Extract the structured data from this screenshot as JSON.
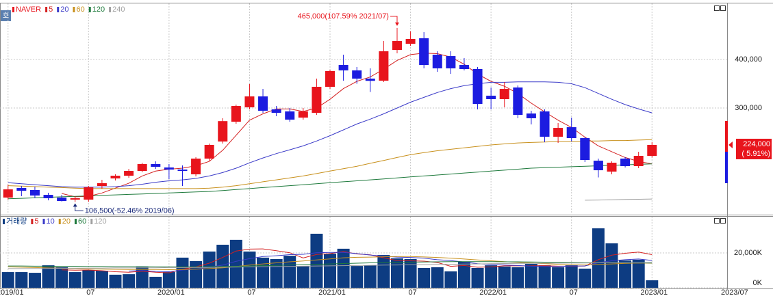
{
  "chart_data": [
    {
      "type": "candlestick",
      "title": "NAVER",
      "title_color": "#e8141c",
      "badge": "호",
      "up_color": "#e8141c",
      "down_color": "#1c1ce0",
      "xlim": [
        -0.6,
        53.6
      ],
      "ylim": [
        81700,
        514100
      ],
      "yticks": [
        {
          "value": 300000,
          "label": "300,000"
        },
        {
          "value": 400000,
          "label": "400,000"
        }
      ],
      "open": [
        115500,
        135200,
        131000,
        121100,
        115500,
        111300,
        111300,
        139400,
        154900,
        160500,
        170400,
        184500,
        177500,
        173200,
        163400,
        195800,
        231000,
        271800,
        301400,
        323900,
        297200,
        293000,
        280300,
        290100,
        343700,
        388700,
        377500,
        360600,
        356300,
        419700,
        432400,
        443700,
        409900,
        407000,
        388700,
        380300,
        325400,
        318300,
        342300,
        288700,
        293000,
        240800,
        260500,
        238000,
        191500,
        169000,
        195800,
        180300,
        201400
      ],
      "high": [
        142000,
        139400,
        138000,
        125400,
        121100,
        118300,
        139400,
        152100,
        163400,
        174600,
        187300,
        190100,
        184500,
        181700,
        198600,
        226800,
        278900,
        307000,
        349300,
        339400,
        304200,
        300000,
        300000,
        360600,
        378900,
        409900,
        384500,
        381700,
        438000,
        465000,
        458000,
        456300,
        416900,
        416900,
        402800,
        384500,
        342300,
        353500,
        346500,
        294400,
        297200,
        269000,
        280300,
        240800,
        195800,
        190100,
        198600,
        209800,
        229600
      ],
      "low": [
        111300,
        118300,
        114100,
        109800,
        107500,
        106500,
        107000,
        133800,
        150700,
        156300,
        167600,
        174600,
        153500,
        139400,
        159100,
        191500,
        226800,
        267600,
        297200,
        290100,
        283100,
        271800,
        276100,
        285900,
        339400,
        356300,
        350000,
        333000,
        353500,
        412700,
        428200,
        381700,
        374600,
        370400,
        377500,
        297200,
        297200,
        301400,
        278900,
        266200,
        229600,
        228200,
        231000,
        188700,
        157000,
        163400,
        177500,
        176100,
        198000
      ],
      "close": [
        132400,
        129600,
        119700,
        114100,
        108400,
        114100,
        136600,
        145100,
        160500,
        170400,
        184500,
        178900,
        173200,
        170400,
        195800,
        224000,
        273000,
        304200,
        323900,
        294400,
        290100,
        276100,
        293000,
        343700,
        376100,
        377500,
        360600,
        356000,
        416900,
        438000,
        442300,
        388700,
        381700,
        381700,
        380300,
        308400,
        318300,
        339400,
        285900,
        278900,
        240800,
        259100,
        238000,
        192900,
        171800,
        187300,
        180300,
        201400,
        224000
      ],
      "series": [
        {
          "name": "5",
          "color": "#d42020",
          "values": [
            null,
            null,
            null,
            null,
            124000,
            117000,
            118000,
            125000,
            135000,
            145000,
            160000,
            170000,
            174000,
            176000,
            181000,
            190000,
            213000,
            244000,
            275000,
            288000,
            298000,
            298000,
            293000,
            300000,
            318000,
            340000,
            355000,
            364000,
            380000,
            398000,
            410000,
            413000,
            412000,
            405000,
            390000,
            370000,
            355000,
            345000,
            330000,
            310000,
            292000,
            275000,
            260000,
            240000,
            222000,
            210000,
            198000,
            190000,
            185000
          ]
        },
        {
          "name": "20",
          "color": "#3a3ac8",
          "values": [
            146000,
            144000,
            142000,
            140000,
            138000,
            137000,
            137000,
            137000,
            138000,
            140000,
            143000,
            147000,
            150000,
            152000,
            155000,
            160000,
            167000,
            176000,
            187000,
            197000,
            206000,
            214000,
            222000,
            232000,
            243000,
            255000,
            267000,
            277000,
            288000,
            300000,
            312000,
            322000,
            332000,
            340000,
            346000,
            350000,
            353000,
            353000,
            354000,
            354000,
            354000,
            353000,
            350000,
            342000,
            330000,
            318000,
            307000,
            298000,
            290000
          ]
        },
        {
          "name": "60",
          "color": "#c8901c",
          "values": [
            140000,
            139000,
            138000,
            137000,
            136000,
            135000,
            134000,
            134000,
            134000,
            134000,
            134000,
            134000,
            134000,
            134000,
            134000,
            135000,
            137000,
            140000,
            144000,
            148000,
            152000,
            156000,
            160000,
            165000,
            170000,
            175000,
            180000,
            186000,
            192000,
            198000,
            204000,
            208000,
            212000,
            215000,
            218000,
            221000,
            224000,
            226000,
            228000,
            229000,
            230000,
            231000,
            231000,
            232000,
            232000,
            233000,
            233000,
            234000,
            235000
          ]
        },
        {
          "name": "120",
          "color": "#1e7a3c",
          "values": [
            113000,
            114000,
            115000,
            116000,
            117000,
            118000,
            119000,
            120000,
            121000,
            122000,
            123000,
            124000,
            125000,
            126000,
            127000,
            128000,
            130000,
            132000,
            134000,
            136000,
            138000,
            140000,
            142000,
            144000,
            146000,
            148000,
            150000,
            152000,
            154000,
            156000,
            158000,
            160000,
            162000,
            164000,
            166000,
            168000,
            170000,
            172000,
            174000,
            176000,
            177000,
            178000,
            179000,
            180000,
            181000,
            182000,
            183000,
            184000,
            185000
          ]
        },
        {
          "name": "240",
          "color": "#a0a0a0",
          "values": [
            null,
            null,
            null,
            null,
            null,
            null,
            null,
            null,
            null,
            null,
            null,
            null,
            null,
            null,
            null,
            null,
            null,
            null,
            null,
            null,
            null,
            null,
            null,
            null,
            null,
            null,
            null,
            null,
            null,
            null,
            null,
            null,
            null,
            null,
            null,
            null,
            null,
            null,
            null,
            null,
            null,
            null,
            null,
            110000,
            110500,
            111000,
            111500,
            112000,
            112500
          ]
        }
      ],
      "high_label": {
        "text": "465,000(107.59% 2021/07)",
        "index": 29
      },
      "low_label": {
        "text": "106,500(-52.46% 2019/06)",
        "index": 5
      },
      "last_label": "224,000",
      "last_change": "( 5.91%)"
    },
    {
      "type": "bar",
      "title": "거래량",
      "color": "#0d3c82",
      "xlim": [
        -0.6,
        53.6
      ],
      "ylim": [
        0,
        39600
      ],
      "yticks": [
        {
          "value": 0,
          "label": "0K"
        },
        {
          "value": 20000,
          "label": "20,000K"
        }
      ],
      "xticks": [
        {
          "value": 0,
          "label": "2019/01"
        },
        {
          "value": 6,
          "label": "07"
        },
        {
          "value": 12,
          "label": "2020/01"
        },
        {
          "value": 18,
          "label": "07"
        },
        {
          "value": 24,
          "label": "2021/01"
        },
        {
          "value": 30,
          "label": "07"
        },
        {
          "value": 36,
          "label": "2022/01"
        },
        {
          "value": 42,
          "label": "07"
        },
        {
          "value": 48,
          "label": "2023/01"
        },
        {
          "value": 54,
          "label": "2023/07"
        }
      ],
      "values": [
        9000,
        9000,
        8600,
        12900,
        11800,
        9000,
        10200,
        9800,
        7500,
        7800,
        12200,
        6300,
        9000,
        17300,
        15300,
        20800,
        24700,
        27500,
        20800,
        17300,
        16500,
        18400,
        12500,
        31000,
        19600,
        22400,
        12500,
        12900,
        18800,
        16900,
        16500,
        11400,
        11800,
        9400,
        14900,
        11400,
        12900,
        12200,
        11800,
        13700,
        12900,
        11800,
        12900,
        11000,
        34100,
        25500,
        15700,
        16100,
        4300
      ],
      "series": [
        {
          "name": "5",
          "color": "#d42020",
          "values": [
            null,
            null,
            null,
            null,
            10300,
            10100,
            10200,
            9800,
            9200,
            8900,
            9500,
            8900,
            8600,
            10600,
            12000,
            14100,
            17400,
            21100,
            22200,
            22300,
            21300,
            20100,
            17100,
            19100,
            19600,
            20800,
            19400,
            18900,
            17200,
            15600,
            15500,
            15300,
            14500,
            12300,
            12800,
            11800,
            12000,
            12600,
            12600,
            12600,
            12700,
            12400,
            12400,
            12500,
            16100,
            18700,
            19800,
            20500,
            19000
          ]
        },
        {
          "name": "10",
          "color": "#3a3ac8",
          "values": [
            null,
            null,
            null,
            null,
            null,
            null,
            null,
            null,
            null,
            9600,
            9900,
            9400,
            9200,
            10200,
            10700,
            11800,
            13000,
            15200,
            16700,
            17900,
            18400,
            19000,
            19200,
            20100,
            20300,
            20300,
            19600,
            18800,
            18100,
            17600,
            17400,
            17000,
            16100,
            15600,
            14800,
            13800,
            13400,
            13000,
            12800,
            12400,
            12200,
            12200,
            12500,
            12500,
            14400,
            15500,
            16100,
            16500,
            15700
          ]
        },
        {
          "name": "20",
          "color": "#c8901c",
          "values": [
            12000,
            11800,
            11600,
            11400,
            11200,
            11000,
            10800,
            10700,
            10600,
            10500,
            10500,
            10500,
            10400,
            10500,
            10700,
            11000,
            11500,
            12200,
            13000,
            13700,
            14300,
            14900,
            15400,
            16000,
            16600,
            17200,
            17500,
            17600,
            17800,
            17900,
            17900,
            17700,
            17400,
            17000,
            16500,
            16000,
            15500,
            15000,
            14600,
            14200,
            13800,
            13500,
            13300,
            13100,
            13400,
            13700,
            14000,
            14200,
            14100
          ]
        },
        {
          "name": "60",
          "color": "#1e7a3c",
          "values": [
            12500,
            12500,
            12400,
            12400,
            12300,
            12300,
            12200,
            12200,
            12100,
            12100,
            12100,
            12000,
            12000,
            12000,
            12000,
            12100,
            12200,
            12300,
            12500,
            12700,
            12900,
            13100,
            13300,
            13500,
            13700,
            13900,
            14100,
            14300,
            14500,
            14600,
            14700,
            14800,
            14900,
            15000,
            15000,
            15000,
            15000,
            14900,
            14900,
            14800,
            14700,
            14600,
            14500,
            14400,
            14400,
            14400,
            14300,
            14300,
            14200
          ]
        },
        {
          "name": "120",
          "color": "#a0a0a0",
          "values": [
            11000,
            11000,
            11100,
            11100,
            11200,
            11200,
            11300,
            11300,
            11400,
            11400,
            11500,
            11500,
            11600,
            11600,
            11700,
            11700,
            11800,
            11900,
            12000,
            12100,
            12200,
            12300,
            12400,
            12500,
            12600,
            12700,
            12800,
            12900,
            13000,
            13100,
            13200,
            13300,
            13400,
            13500,
            13600,
            13700,
            13800,
            13900,
            14000,
            14000,
            14100,
            14100,
            14200,
            14200,
            14300,
            14300,
            14400,
            14400,
            14500
          ]
        }
      ]
    }
  ]
}
